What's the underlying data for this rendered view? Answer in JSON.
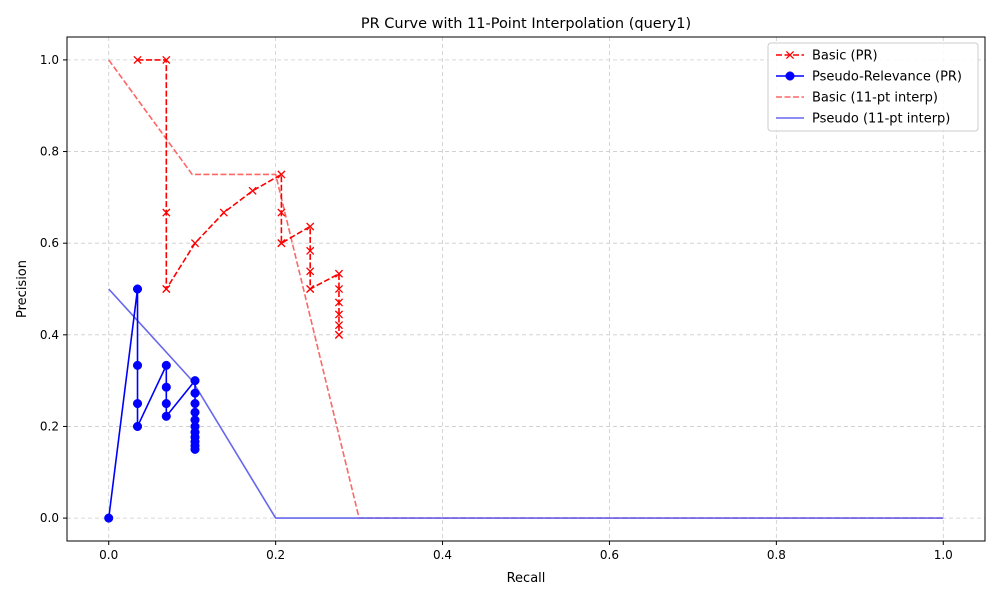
{
  "chart_data": {
    "type": "line",
    "title": "PR Curve with 11-Point Interpolation (query1)",
    "xlabel": "Recall",
    "ylabel": "Precision",
    "xlim": [
      -0.05,
      1.05
    ],
    "ylim": [
      -0.05,
      1.05
    ],
    "xticks": [
      0.0,
      0.2,
      0.4,
      0.6,
      0.8,
      1.0
    ],
    "yticks": [
      0.0,
      0.2,
      0.4,
      0.6,
      0.8,
      1.0
    ],
    "xtick_labels": [
      "0.0",
      "0.2",
      "0.4",
      "0.6",
      "0.8",
      "1.0"
    ],
    "ytick_labels": [
      "0.0",
      "0.2",
      "0.4",
      "0.6",
      "0.8",
      "1.0"
    ],
    "grid": true,
    "legend_position": "top-right",
    "series": [
      {
        "name": "Basic (PR)",
        "color": "#ff0000",
        "style": "dashed",
        "marker": "x",
        "x": [
          0.0345,
          0.069,
          0.069,
          0.069,
          0.069,
          0.1034,
          0.1379,
          0.1724,
          0.2069,
          0.2069,
          0.2069,
          0.2069,
          0.2414,
          0.2414,
          0.2414,
          0.2414,
          0.2414,
          0.2759,
          0.2759,
          0.2759,
          0.2759,
          0.2759,
          0.2759,
          0.2759
        ],
        "y": [
          1.0,
          1.0,
          0.6667,
          0.5,
          0.5,
          0.6,
          0.6667,
          0.7143,
          0.75,
          0.6667,
          0.6,
          0.6,
          0.6364,
          0.5833,
          0.5385,
          0.5,
          0.5,
          0.5333,
          0.5,
          0.4706,
          0.4444,
          0.4211,
          0.4,
          0.4
        ]
      },
      {
        "name": "Pseudo-Relevance (PR)",
        "color": "#0000ff",
        "style": "solid",
        "marker": "o",
        "x": [
          0.0,
          0.0345,
          0.0345,
          0.0345,
          0.0345,
          0.069,
          0.069,
          0.069,
          0.069,
          0.1034,
          0.1034,
          0.1034,
          0.1034,
          0.1034,
          0.1034,
          0.1034,
          0.1034,
          0.1034,
          0.1034,
          0.1034
        ],
        "y": [
          0.0,
          0.5,
          0.3333,
          0.25,
          0.2,
          0.3333,
          0.2857,
          0.25,
          0.2222,
          0.3,
          0.2727,
          0.25,
          0.2308,
          0.2143,
          0.2,
          0.1875,
          0.1765,
          0.1667,
          0.1579,
          0.15
        ]
      },
      {
        "name": "Basic (11-pt interp)",
        "color": "#ff6666",
        "style": "dashed",
        "marker": "none",
        "x": [
          0.0,
          0.1,
          0.2,
          0.3,
          0.4,
          0.5,
          0.6,
          0.7,
          0.8,
          0.9,
          1.0
        ],
        "y": [
          1.0,
          0.75,
          0.75,
          0.0,
          0.0,
          0.0,
          0.0,
          0.0,
          0.0,
          0.0,
          0.0
        ]
      },
      {
        "name": "Pseudo (11-pt interp)",
        "color": "#6666ee",
        "style": "solid",
        "marker": "none",
        "x": [
          0.0,
          0.1,
          0.2,
          0.3,
          0.4,
          0.5,
          0.6,
          0.7,
          0.8,
          0.9,
          1.0
        ],
        "y": [
          0.5,
          0.3,
          0.0,
          0.0,
          0.0,
          0.0,
          0.0,
          0.0,
          0.0,
          0.0,
          0.0
        ]
      }
    ]
  }
}
